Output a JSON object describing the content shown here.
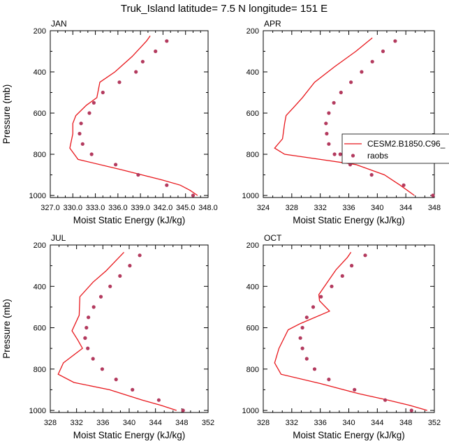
{
  "figure_title": "Truk_Island  latitude= 7.5 N longitude= 151 E",
  "legend": {
    "model_label": "CESM2.B1850.C96_",
    "obs_label": "raobs",
    "model_color": "#e8161b",
    "obs_color": "#b33a5e"
  },
  "chart_data": [
    {
      "type": "line",
      "panel": "JAN",
      "xlabel": "Moist Static Energy (kJ/kg)",
      "ylabel": "Pressure (mb)",
      "xlim": [
        327,
        348
      ],
      "ylim": [
        1010,
        200
      ],
      "xticks": [
        327,
        330,
        333,
        336,
        339,
        342,
        345,
        348
      ],
      "xtick_labels": [
        "327.0",
        "330.0",
        "333.0",
        "336.0",
        "339.0",
        "342.0",
        "345.0",
        "348.0"
      ],
      "yticks": [
        200,
        400,
        600,
        800,
        1000
      ],
      "ytick_labels": [
        "200",
        "400",
        "600",
        "800",
        "1000"
      ],
      "show_ylabel": true,
      "series": [
        {
          "name": "CESM2.B1850.C96_",
          "kind": "line",
          "x": [
            340.3,
            339.8,
            337.9,
            335.6,
            333.6,
            333.2,
            331.8,
            330.4,
            330.0,
            330.0,
            329.6,
            330.7,
            336.5,
            341.9,
            344.3,
            345.6,
            346.6
          ],
          "y": [
            225,
            250,
            325,
            400,
            450,
            525,
            562,
            612,
            650,
            700,
            770,
            825,
            875,
            925,
            950,
            975,
            1000
          ]
        },
        {
          "name": "raobs",
          "kind": "scatter",
          "x": [
            342.5,
            341.0,
            339.3,
            338.4,
            336.2,
            334.0,
            332.8,
            332.2,
            331.1,
            330.9,
            331.3,
            332.5,
            335.7,
            338.7,
            342.5,
            346.0
          ],
          "y": [
            250,
            300,
            350,
            400,
            450,
            500,
            550,
            600,
            650,
            700,
            750,
            800,
            850,
            900,
            950,
            1000
          ]
        }
      ]
    },
    {
      "type": "line",
      "panel": "APR",
      "xlabel": "Moist Static Energy (kJ/kg)",
      "ylabel": "",
      "xlim": [
        324,
        348
      ],
      "ylim": [
        1010,
        200
      ],
      "xticks": [
        324,
        328,
        332,
        336,
        340,
        344,
        348
      ],
      "xtick_labels": [
        "324",
        "328",
        "332",
        "336",
        "340",
        "344",
        "348"
      ],
      "yticks": [
        200,
        400,
        600,
        800,
        1000
      ],
      "ytick_labels": [
        "200",
        "400",
        "600",
        "800",
        "1000"
      ],
      "show_ylabel": false,
      "series": [
        {
          "name": "CESM2.B1850.C96_",
          "kind": "line",
          "x": [
            339.3,
            337.0,
            334.0,
            331.2,
            329.5,
            328.2,
            327.2,
            327.0,
            326.7,
            325.6,
            327.0,
            332.0,
            337.0,
            341.0,
            343.2,
            345.2
          ],
          "y": [
            235,
            300,
            375,
            450,
            525,
            575,
            612,
            650,
            725,
            770,
            800,
            825,
            850,
            900,
            950,
            1000
          ]
        },
        {
          "name": "raobs",
          "kind": "scatter",
          "x": [
            342.5,
            340.8,
            339.3,
            337.8,
            336.3,
            334.9,
            333.9,
            333.2,
            332.8,
            332.9,
            333.2,
            334.0,
            334.8,
            336.2,
            339.2,
            343.7,
            347.8
          ],
          "y": [
            250,
            300,
            350,
            400,
            450,
            500,
            550,
            600,
            650,
            700,
            750,
            800,
            800,
            850,
            900,
            950,
            1000
          ]
        }
      ]
    },
    {
      "type": "line",
      "panel": "JUL",
      "xlabel": "Moist Static Energy (kJ/kg)",
      "ylabel": "Pressure (mb)",
      "xlim": [
        328,
        352
      ],
      "ylim": [
        1010,
        200
      ],
      "xticks": [
        328,
        332,
        336,
        340,
        344,
        348,
        352
      ],
      "xtick_labels": [
        "328",
        "332",
        "336",
        "340",
        "344",
        "348",
        "352"
      ],
      "yticks": [
        200,
        400,
        600,
        800,
        1000
      ],
      "ytick_labels": [
        "200",
        "400",
        "600",
        "800",
        "1000"
      ],
      "show_ylabel": true,
      "series": [
        {
          "name": "CESM2.B1850.C96_",
          "kind": "line",
          "x": [
            339.2,
            338.0,
            336.5,
            334.5,
            332.5,
            332.4,
            331.3,
            332.2,
            332.9,
            330.0,
            329.2,
            331.6,
            337.0,
            342.0,
            344.8,
            347.2
          ],
          "y": [
            235,
            275,
            325,
            380,
            450,
            540,
            615,
            660,
            700,
            770,
            825,
            865,
            900,
            950,
            975,
            1000
          ]
        },
        {
          "name": "raobs",
          "kind": "scatter",
          "x": [
            341.6,
            340.1,
            338.6,
            337.1,
            335.7,
            334.6,
            333.8,
            333.5,
            333.3,
            333.3,
            333.7,
            334.5,
            335.9,
            338.0,
            340.5,
            344.5,
            348.2
          ],
          "y": [
            250,
            300,
            350,
            400,
            450,
            500,
            550,
            600,
            650,
            650,
            700,
            750,
            800,
            850,
            900,
            950,
            1000
          ]
        }
      ]
    },
    {
      "type": "line",
      "panel": "OCT",
      "xlabel": "Moist Static Energy (kJ/kg)",
      "ylabel": "",
      "xlim": [
        328,
        352
      ],
      "ylim": [
        1010,
        200
      ],
      "xticks": [
        328,
        332,
        336,
        340,
        344,
        348,
        352
      ],
      "xtick_labels": [
        "328",
        "332",
        "336",
        "340",
        "344",
        "348",
        "352"
      ],
      "yticks": [
        200,
        400,
        600,
        800,
        1000
      ],
      "ytick_labels": [
        "200",
        "400",
        "600",
        "800",
        "1000"
      ],
      "show_ylabel": false,
      "series": [
        {
          "name": "CESM2.B1850.C96_",
          "kind": "line",
          "x": [
            340.3,
            339.8,
            338.2,
            337.0,
            335.8,
            335.9,
            337.3,
            333.2,
            331.5,
            330.2,
            329.6,
            330.5,
            336.0,
            341.5,
            345.5,
            348.5,
            351.0
          ],
          "y": [
            235,
            260,
            320,
            380,
            440,
            470,
            520,
            580,
            610,
            700,
            770,
            825,
            870,
            920,
            950,
            975,
            1000
          ]
        },
        {
          "name": "raobs",
          "kind": "scatter",
          "x": [
            342.3,
            340.4,
            339.1,
            337.6,
            336.1,
            335.0,
            334.1,
            333.5,
            333.2,
            333.5,
            334.1,
            335.2,
            337.2,
            340.8,
            345.1,
            348.8
          ],
          "y": [
            250,
            300,
            350,
            400,
            450,
            500,
            550,
            600,
            650,
            700,
            750,
            800,
            850,
            900,
            950,
            1000
          ]
        }
      ]
    }
  ]
}
